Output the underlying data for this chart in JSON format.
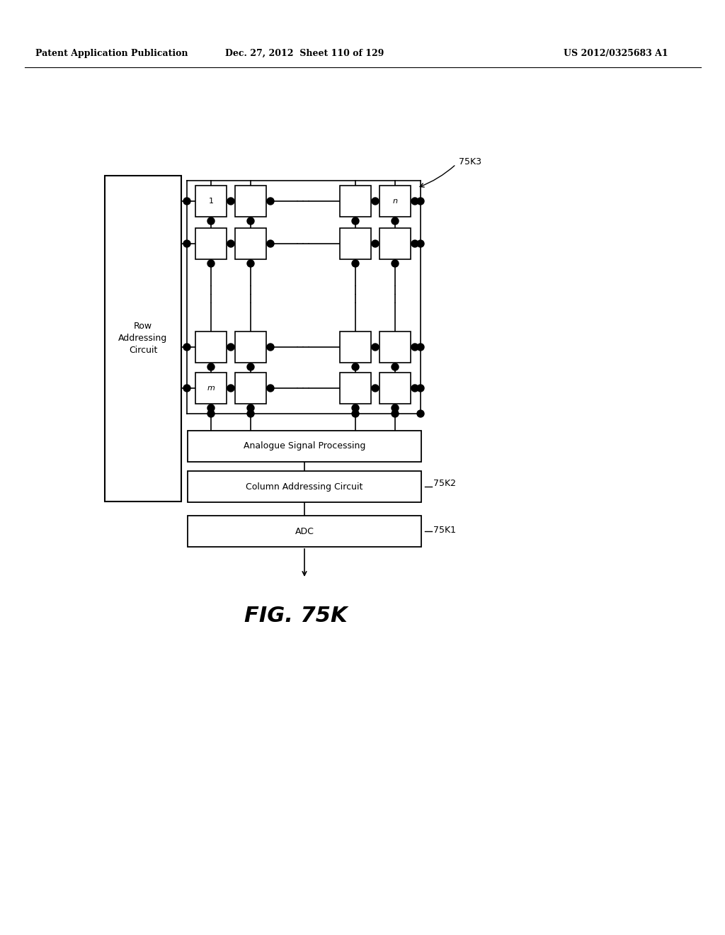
{
  "header_left": "Patent Application Publication",
  "header_mid": "Dec. 27, 2012  Sheet 110 of 129",
  "header_right": "US 2012/0325683 A1",
  "fig_label": "FIG. 75K",
  "label_75K3": "75K3",
  "label_75K2": "75K2",
  "label_75K1": "75K1",
  "row_circuit_label": "Row\nAddressing\nCircuit",
  "analogue_label": "Analogue Signal Processing",
  "column_label": "Column Addressing Circuit",
  "adc_label": "ADC",
  "bg_color": "#ffffff"
}
